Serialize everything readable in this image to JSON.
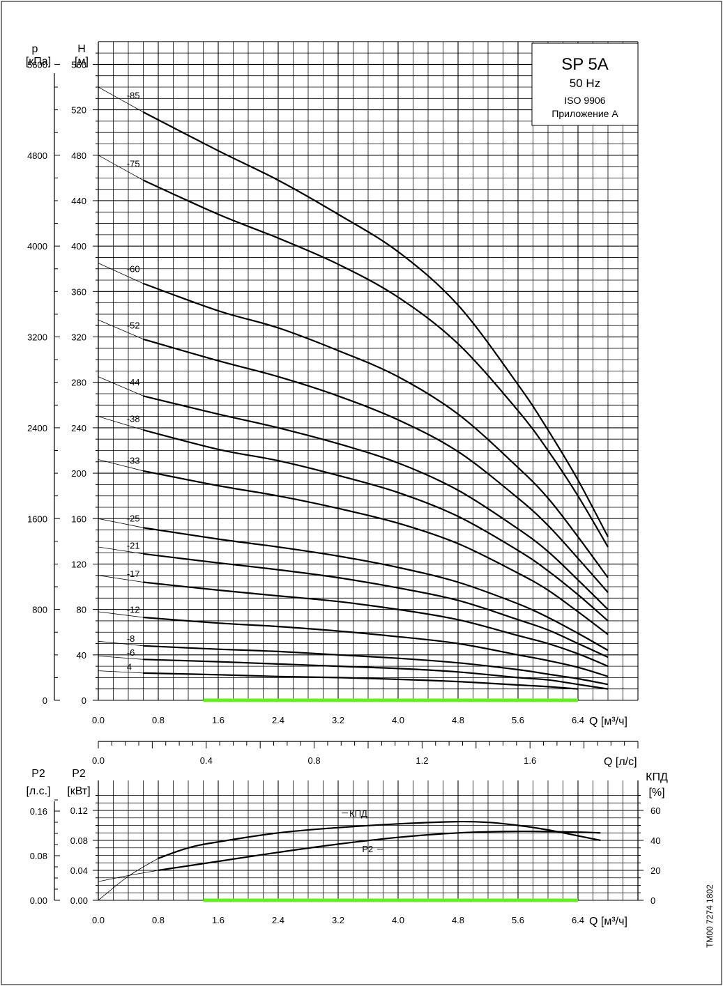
{
  "info_box": {
    "model": "SP 5A",
    "frequency": "50 Hz",
    "standard": "ISO 9906",
    "annex": "Приложение А"
  },
  "doc_code": "TM00 7274 1802",
  "colors": {
    "operating_range": "#66ee22",
    "grid": "#000000",
    "curve": "#000000"
  },
  "chart_data": [
    {
      "type": "line",
      "name": "head-curves",
      "x_label": "Q [м³/ч]",
      "y_label_left": "p\n[кПа]",
      "y_label_right": "H\n[м]",
      "xlim": [
        0,
        7.2
      ],
      "ylim": [
        0,
        580
      ],
      "x_ticks": [
        "0.0",
        "0.8",
        "1.6",
        "2.4",
        "3.2",
        "4.0",
        "4.8",
        "5.6",
        "6.4"
      ],
      "h_ticks": [
        "0",
        "40",
        "80",
        "120",
        "160",
        "200",
        "240",
        "280",
        "320",
        "360",
        "400",
        "440",
        "480",
        "520",
        "560"
      ],
      "p_ticks": [
        "0",
        "800",
        "1600",
        "2400",
        "3200",
        "4000",
        "4800",
        "5600"
      ],
      "operating_range_q": [
        1.4,
        6.4
      ],
      "series": [
        {
          "name": "-85",
          "x": [
            0,
            0.6,
            1.6,
            2.4,
            3.2,
            4.0,
            4.8,
            5.6,
            6.0,
            6.4,
            6.8
          ],
          "y": [
            540,
            518,
            484,
            458,
            428,
            395,
            348,
            278,
            238,
            194,
            144
          ]
        },
        {
          "name": "-75",
          "x": [
            0,
            0.6,
            1.6,
            2.4,
            3.2,
            4.0,
            4.8,
            5.6,
            6.0,
            6.4,
            6.8
          ],
          "y": [
            480,
            458,
            428,
            407,
            384,
            355,
            314,
            255,
            220,
            180,
            135
          ]
        },
        {
          "name": "-60",
          "x": [
            0,
            0.6,
            1.6,
            2.4,
            3.2,
            4.0,
            4.8,
            5.6,
            6.0,
            6.4,
            6.8
          ],
          "y": [
            385,
            367,
            343,
            328,
            308,
            285,
            252,
            205,
            178,
            144,
            108
          ]
        },
        {
          "name": "-52",
          "x": [
            0,
            0.6,
            1.6,
            2.4,
            3.2,
            4.0,
            4.8,
            5.6,
            6.0,
            6.4,
            6.8
          ],
          "y": [
            335,
            318,
            299,
            285,
            268,
            247,
            219,
            178,
            154,
            125,
            95
          ]
        },
        {
          "name": "-44",
          "x": [
            0,
            0.6,
            1.6,
            2.4,
            3.2,
            4.0,
            4.8,
            5.6,
            6.0,
            6.4,
            6.8
          ],
          "y": [
            285,
            268,
            252,
            240,
            226,
            209,
            185,
            151,
            131,
            106,
            80
          ]
        },
        {
          "name": "-38",
          "x": [
            0,
            0.6,
            1.6,
            2.4,
            3.2,
            4.0,
            4.8,
            5.6,
            6.0,
            6.4,
            6.8
          ],
          "y": [
            250,
            238,
            221,
            211,
            198,
            183,
            162,
            132,
            114,
            93,
            70
          ]
        },
        {
          "name": "-33",
          "x": [
            0,
            0.6,
            1.6,
            2.4,
            3.2,
            4.0,
            4.8,
            5.6,
            6.0,
            6.4,
            6.8
          ],
          "y": [
            212,
            202,
            189,
            180,
            169,
            156,
            138,
            112,
            97,
            78,
            58
          ]
        },
        {
          "name": "-25",
          "x": [
            0,
            0.6,
            1.6,
            2.4,
            3.2,
            4.0,
            4.8,
            5.6,
            6.0,
            6.4,
            6.8
          ],
          "y": [
            160,
            152,
            142,
            135,
            127,
            117,
            104,
            85,
            73,
            59,
            44
          ]
        },
        {
          "name": "-21",
          "x": [
            0,
            0.6,
            1.6,
            2.4,
            3.2,
            4.0,
            4.8,
            5.6,
            6.0,
            6.4,
            6.8
          ],
          "y": [
            135,
            129,
            121,
            115,
            108,
            99,
            88,
            71,
            62,
            50,
            38
          ]
        },
        {
          "name": "-17",
          "x": [
            0,
            0.6,
            1.6,
            2.4,
            3.2,
            4.0,
            4.8,
            5.6,
            6.0,
            6.4,
            6.8
          ],
          "y": [
            110,
            104,
            97,
            92,
            87,
            80,
            71,
            57,
            50,
            41,
            30
          ]
        },
        {
          "name": "-12",
          "x": [
            0,
            0.6,
            1.6,
            2.4,
            3.2,
            4.0,
            4.8,
            5.6,
            6.0,
            6.4,
            6.8
          ],
          "y": [
            78,
            73,
            68,
            65,
            61,
            56,
            50,
            40,
            35,
            29,
            21
          ]
        },
        {
          "name": "-8",
          "x": [
            0,
            0.6,
            1.6,
            2.4,
            3.2,
            4.0,
            4.8,
            5.6,
            6.0,
            6.4,
            6.8
          ],
          "y": [
            52,
            48,
            45,
            43,
            40,
            37,
            33,
            27,
            23,
            19,
            14
          ]
        },
        {
          "name": "-6",
          "x": [
            0,
            0.6,
            1.6,
            2.4,
            3.2,
            4.0,
            4.8,
            5.6,
            6.0,
            6.4,
            6.8
          ],
          "y": [
            39,
            36,
            34,
            32,
            30,
            28,
            25,
            20,
            18,
            14,
            10
          ]
        },
        {
          "name": "4",
          "x": [
            0,
            0.6,
            1.6,
            2.4,
            3.2,
            4.0,
            4.8,
            5.6,
            6.0,
            6.4
          ],
          "y": [
            26,
            24,
            22.5,
            21,
            20,
            18.5,
            16.5,
            13.5,
            12,
            10
          ]
        }
      ]
    },
    {
      "type": "line",
      "name": "power-efficiency",
      "x_label": "Q [м³/ч]",
      "x2_label": "Q [л/с]",
      "x2_ticks": [
        "0.0",
        "0.4",
        "0.8",
        "1.2",
        "1.6"
      ],
      "y_label_hp": "P2\n[л.с.]",
      "y_label_kw": "P2\n[кВт]",
      "y_label_eff": "КПД\n[%]",
      "kw_ticks": [
        "0.00",
        "0.04",
        "0.08",
        "0.12"
      ],
      "hp_ticks": [
        "0.00",
        "0.08",
        "0.16"
      ],
      "eff_ticks": [
        "0",
        "20",
        "40",
        "60"
      ],
      "xlim": [
        0,
        7.2
      ],
      "ylim": [
        0,
        0.14
      ],
      "operating_range_q": [
        1.4,
        6.4
      ],
      "series": [
        {
          "name": "КПД",
          "unit": "%",
          "x": [
            0,
            0.4,
            0.8,
            1.2,
            1.6,
            2.4,
            3.2,
            4.0,
            4.8,
            5.2,
            5.6,
            6.0,
            6.4,
            6.7
          ],
          "y": [
            0,
            16,
            28,
            35,
            39,
            45,
            48.5,
            51,
            52.5,
            52,
            50,
            47,
            43,
            40
          ]
        },
        {
          "name": "P2",
          "unit": "кВт",
          "x": [
            0,
            0.4,
            0.8,
            1.6,
            2.4,
            3.2,
            4.0,
            4.8,
            5.6,
            6.4,
            6.7
          ],
          "y": [
            0.025,
            0.033,
            0.04,
            0.052,
            0.064,
            0.075,
            0.084,
            0.09,
            0.092,
            0.091,
            0.09
          ]
        }
      ]
    }
  ]
}
